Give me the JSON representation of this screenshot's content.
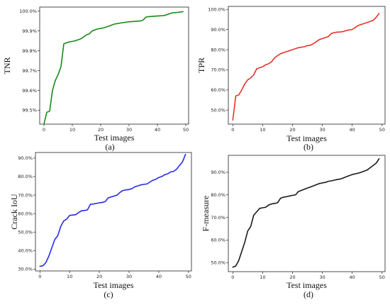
{
  "chart_data": [
    {
      "type": "line",
      "caption": "(a)",
      "xlabel": "Test images",
      "ylabel": "TNR",
      "color": "#1a8a1a",
      "xlim": [
        -1.5,
        51
      ],
      "ylim": [
        99.43,
        100.02
      ],
      "xticks": [
        0,
        10,
        20,
        30,
        40,
        50
      ],
      "xtick_labels": [
        "0",
        "10",
        "20",
        "30",
        "40",
        "50"
      ],
      "yticks": [
        99.5,
        99.6,
        99.7,
        99.8,
        99.9,
        100.0
      ],
      "ytick_labels": [
        "99.5%",
        "99.6%",
        "99.7%",
        "99.8%",
        "99.9%",
        "100.0%"
      ],
      "series": [
        {
          "x": [
            0,
            1,
            2,
            3,
            4,
            5,
            6,
            7,
            8,
            9,
            10,
            11,
            12,
            13,
            14,
            15,
            16,
            17,
            18,
            19,
            20,
            21,
            22,
            23,
            24,
            25,
            26,
            27,
            28,
            29,
            30,
            31,
            32,
            33,
            34,
            35,
            36,
            37,
            38,
            39,
            40,
            41,
            42,
            43,
            44,
            45,
            46,
            47,
            48,
            49
          ],
          "values": [
            99.43,
            99.49,
            99.495,
            99.6,
            99.65,
            99.68,
            99.72,
            99.835,
            99.84,
            99.845,
            99.847,
            99.85,
            99.855,
            99.86,
            99.87,
            99.88,
            99.885,
            99.9,
            99.905,
            99.91,
            99.912,
            99.915,
            99.92,
            99.925,
            99.93,
            99.935,
            99.937,
            99.94,
            99.942,
            99.944,
            99.946,
            99.947,
            99.948,
            99.949,
            99.95,
            99.955,
            99.97,
            99.972,
            99.973,
            99.974,
            99.975,
            99.976,
            99.977,
            99.98,
            99.985,
            99.99,
            99.992,
            99.993,
            99.995,
            99.997
          ]
        }
      ]
    },
    {
      "type": "line",
      "caption": "(b)",
      "xlabel": "Test images",
      "ylabel": "TPR",
      "color": "#e8322b",
      "xlim": [
        -1.5,
        51
      ],
      "ylim": [
        43,
        101.5
      ],
      "xticks": [
        0,
        10,
        20,
        30,
        40,
        50
      ],
      "xtick_labels": [
        "0",
        "10",
        "20",
        "30",
        "40",
        "50"
      ],
      "yticks": [
        50,
        60,
        70,
        80,
        90,
        100
      ],
      "ytick_labels": [
        "50.0%",
        "60.0%",
        "70.0%",
        "80.0%",
        "90.0%",
        "100.0%"
      ],
      "series": [
        {
          "x": [
            0,
            1,
            2,
            3,
            4,
            5,
            6,
            7,
            8,
            9,
            10,
            11,
            12,
            13,
            14,
            15,
            16,
            17,
            18,
            19,
            20,
            21,
            22,
            23,
            24,
            25,
            26,
            27,
            28,
            29,
            30,
            31,
            32,
            33,
            34,
            35,
            36,
            37,
            38,
            39,
            40,
            41,
            42,
            43,
            44,
            45,
            46,
            47,
            48,
            49
          ],
          "values": [
            45,
            57,
            57.5,
            60,
            63,
            65,
            66,
            67.5,
            70.5,
            71,
            71.5,
            72.5,
            73,
            74,
            76,
            77,
            78,
            78.5,
            79,
            79.5,
            80,
            80.5,
            81,
            81.2,
            81.5,
            82,
            82.2,
            83,
            84,
            85,
            85.5,
            86,
            86.5,
            88,
            88.5,
            88.7,
            88.8,
            89,
            89.5,
            89.8,
            90,
            91,
            92,
            92.5,
            93,
            93.5,
            94,
            94.5,
            96,
            98
          ]
        }
      ]
    },
    {
      "type": "line",
      "caption": "(c)",
      "xlabel": "Test images",
      "ylabel": "Crack IoU",
      "color": "#2a2ae6",
      "xlim": [
        -1.5,
        51
      ],
      "ylim": [
        29,
        93
      ],
      "xticks": [
        0,
        10,
        20,
        30,
        40,
        50
      ],
      "xtick_labels": [
        "0",
        "10",
        "20",
        "30",
        "40",
        "50"
      ],
      "yticks": [
        30,
        40,
        50,
        60,
        70,
        80,
        90
      ],
      "ytick_labels": [
        "30.0%",
        "40.0%",
        "50.0%",
        "60.0%",
        "70.0%",
        "80.0%",
        "90.0%"
      ],
      "series": [
        {
          "x": [
            0,
            1,
            2,
            3,
            4,
            5,
            6,
            7,
            8,
            9,
            10,
            11,
            12,
            13,
            14,
            15,
            16,
            17,
            18,
            19,
            20,
            21,
            22,
            23,
            24,
            25,
            26,
            27,
            28,
            29,
            30,
            31,
            32,
            33,
            34,
            35,
            36,
            37,
            38,
            39,
            40,
            41,
            42,
            43,
            44,
            45,
            46,
            47,
            48,
            49
          ],
          "values": [
            31.5,
            31.8,
            33.5,
            37,
            41.5,
            46,
            48,
            53,
            56,
            57,
            59,
            59.2,
            59.4,
            60.5,
            61.5,
            61.7,
            62,
            65,
            65.2,
            65.5,
            65.8,
            66,
            66.5,
            68.5,
            69,
            69.5,
            70,
            71.5,
            72.5,
            72.8,
            73,
            73.5,
            74.5,
            75,
            75.5,
            75.8,
            76,
            77,
            78,
            78.5,
            79.5,
            80,
            81,
            81.5,
            82.5,
            82.8,
            84,
            86,
            88,
            92
          ]
        }
      ]
    },
    {
      "type": "line",
      "caption": "(d)",
      "xlabel": "Test images",
      "ylabel": "F-measure",
      "color": "#1a1a1a",
      "xlim": [
        -1.5,
        51
      ],
      "ylim": [
        46,
        97.5
      ],
      "xticks": [
        0,
        10,
        20,
        30,
        40,
        50
      ],
      "xtick_labels": [
        "0",
        "10",
        "20",
        "30",
        "40",
        "50"
      ],
      "yticks": [
        50,
        60,
        70,
        80,
        90
      ],
      "ytick_labels": [
        "50.0%",
        "60.0%",
        "70.0%",
        "80.0%",
        "90.0%"
      ],
      "series": [
        {
          "x": [
            0,
            1,
            2,
            3,
            4,
            5,
            6,
            7,
            8,
            9,
            10,
            11,
            12,
            13,
            14,
            15,
            16,
            17,
            18,
            19,
            20,
            21,
            22,
            23,
            24,
            25,
            26,
            27,
            28,
            29,
            30,
            31,
            32,
            33,
            34,
            35,
            36,
            37,
            38,
            39,
            40,
            41,
            42,
            43,
            44,
            45,
            46,
            47,
            48,
            49
          ],
          "values": [
            48,
            48.5,
            51,
            55,
            59,
            64,
            66,
            71,
            72.5,
            74,
            74.3,
            74.5,
            75.5,
            76,
            76.2,
            76.5,
            78.5,
            79,
            79.2,
            79.5,
            79.8,
            80,
            81.5,
            82,
            82.5,
            83,
            83.5,
            84,
            84.5,
            85,
            85.3,
            85.5,
            86,
            86.2,
            86.5,
            86.8,
            87,
            87.5,
            88,
            88.5,
            89,
            89.3,
            89.6,
            90,
            90.5,
            91,
            92,
            93,
            94,
            96
          ]
        }
      ]
    }
  ]
}
